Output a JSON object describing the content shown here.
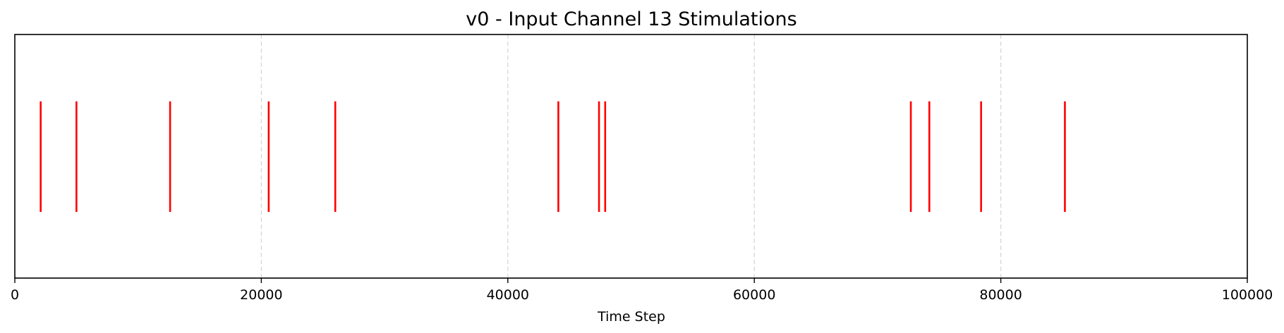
{
  "chart_data": {
    "type": "event_raster",
    "title": "v0 - Input Channel 13 Stimulations",
    "xlabel": "Time Step",
    "ylabel": "",
    "xlim": [
      0,
      100000
    ],
    "xticks": [
      0,
      20000,
      40000,
      60000,
      80000,
      100000
    ],
    "xtick_labels": [
      "0",
      "20000",
      "40000",
      "60000",
      "80000",
      "100000"
    ],
    "y_ticks_visible": false,
    "grid": {
      "x": true,
      "y": false,
      "style": "dashed"
    },
    "series": [
      {
        "events": [
          2100,
          5000,
          12600,
          20600,
          26000,
          44100,
          47400,
          47900,
          72700,
          74200,
          78400,
          85200
        ]
      }
    ],
    "colors": {
      "event": "#ff0000",
      "grid": "#d3d3d3",
      "axes": "#000000",
      "background": "#ffffff"
    }
  }
}
